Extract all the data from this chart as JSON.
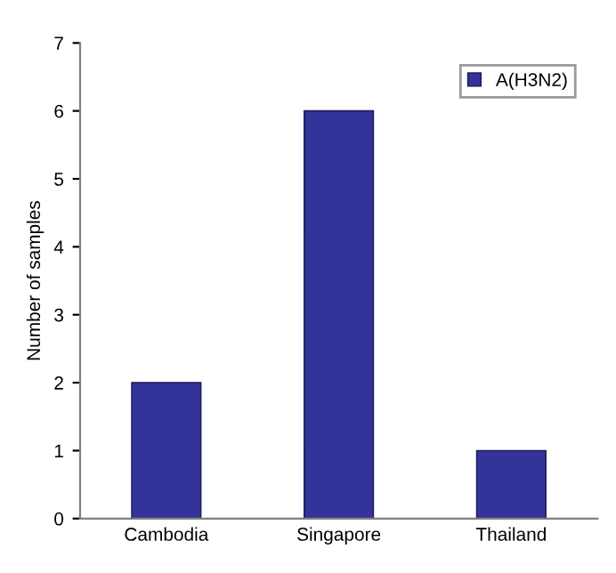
{
  "chart_data": {
    "type": "bar",
    "ylabel": "Number of samples",
    "categories": [
      "Cambodia",
      "Singapore",
      "Thailand"
    ],
    "series": [
      {
        "name": "A(H3N2)",
        "color": "#333399",
        "values": [
          2,
          6,
          1
        ]
      }
    ],
    "ylim": [
      0,
      7
    ],
    "yticks": [
      0,
      1,
      2,
      3,
      4,
      5,
      6,
      7
    ],
    "grid": false,
    "legend": "top right"
  }
}
